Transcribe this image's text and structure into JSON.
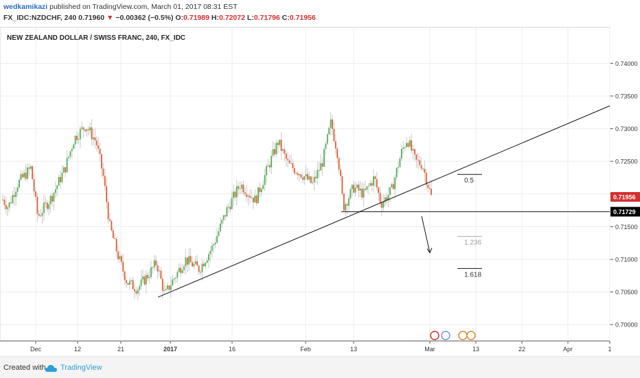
{
  "header": {
    "author": "wedkamikazi",
    "published_text": "published on TradingView.com, March 01, 2017 08:31 EST",
    "symbol": "FX_IDC:NZDCHF, 240",
    "last": "0.71960",
    "change": "−0.00362 (−0.5%)",
    "o_label": "O:",
    "o_value": "0.71989",
    "h_label": "H:",
    "h_value": "0.72072",
    "l_label": "L:",
    "l_value": "0.71796",
    "c_label": "C:",
    "c_value": "0.71956"
  },
  "chart_title": "NEW ZEALAND DOLLAR / SWISS FRANC, 240, FX_IDC",
  "footer": {
    "created": "Created with",
    "brand": "TradingView"
  },
  "colors": {
    "up": "#4caf50",
    "down": "#e05a2b",
    "grid": "#ececec",
    "price_badge": "#d32f2f",
    "level_badge": "#000000",
    "brand": "#2a9fd8"
  },
  "chart_data": {
    "type": "candlestick",
    "title": "NEW ZEALAND DOLLAR / SWISS FRANC, 240, FX_IDC",
    "x_ticks": [
      "Dec",
      "12",
      "21",
      "2017",
      "16",
      "Feb",
      "13",
      "Mar",
      "13",
      "22",
      "Apr",
      "1"
    ],
    "y_ticks": [
      "0.74000",
      "0.73500",
      "0.73000",
      "0.72500",
      "0.72000",
      "0.71500",
      "0.71000",
      "0.70500",
      "0.70000"
    ],
    "ylim": [
      0.6975,
      0.7455
    ],
    "grid": true,
    "last_price_label": "0.71956",
    "support_level_label": "0.71729",
    "support_level": 0.71729,
    "fib_levels": [
      {
        "label": "0.5",
        "value": 0.723
      },
      {
        "label": "1.236",
        "value": 0.7135
      },
      {
        "label": "1.618",
        "value": 0.7086
      }
    ],
    "trendline": {
      "from": {
        "date": "2016-12-30",
        "price": 0.7042
      },
      "to": {
        "date": "2017-04-01",
        "price": 0.7335
      }
    },
    "projection_arrow": {
      "from": {
        "date": "2017-03-01",
        "price": 0.7166
      },
      "to": {
        "date": "2017-03-01",
        "price": 0.711
      }
    },
    "waypoints": [
      {
        "x": 5,
        "p": 0.719
      },
      {
        "x": 12,
        "p": 0.718
      },
      {
        "x": 25,
        "p": 0.7215
      },
      {
        "x": 45,
        "p": 0.724
      },
      {
        "x": 55,
        "p": 0.7165
      },
      {
        "x": 75,
        "p": 0.7195
      },
      {
        "x": 95,
        "p": 0.724
      },
      {
        "x": 108,
        "p": 0.7285
      },
      {
        "x": 125,
        "p": 0.7305
      },
      {
        "x": 140,
        "p": 0.728
      },
      {
        "x": 150,
        "p": 0.723
      },
      {
        "x": 160,
        "p": 0.715
      },
      {
        "x": 172,
        "p": 0.7105
      },
      {
        "x": 185,
        "p": 0.7065
      },
      {
        "x": 200,
        "p": 0.7055
      },
      {
        "x": 215,
        "p": 0.7075
      },
      {
        "x": 228,
        "p": 0.7095
      },
      {
        "x": 240,
        "p": 0.7045
      },
      {
        "x": 250,
        "p": 0.7065
      },
      {
        "x": 270,
        "p": 0.71
      },
      {
        "x": 290,
        "p": 0.7085
      },
      {
        "x": 310,
        "p": 0.712
      },
      {
        "x": 330,
        "p": 0.7175
      },
      {
        "x": 350,
        "p": 0.7215
      },
      {
        "x": 372,
        "p": 0.719
      },
      {
        "x": 390,
        "p": 0.724
      },
      {
        "x": 405,
        "p": 0.728
      },
      {
        "x": 420,
        "p": 0.7245
      },
      {
        "x": 440,
        "p": 0.723
      },
      {
        "x": 455,
        "p": 0.7215
      },
      {
        "x": 470,
        "p": 0.725
      },
      {
        "x": 482,
        "p": 0.731
      },
      {
        "x": 492,
        "p": 0.726
      },
      {
        "x": 500,
        "p": 0.718
      },
      {
        "x": 515,
        "p": 0.721
      },
      {
        "x": 530,
        "p": 0.72
      },
      {
        "x": 545,
        "p": 0.7225
      },
      {
        "x": 555,
        "p": 0.7185
      },
      {
        "x": 570,
        "p": 0.7205
      },
      {
        "x": 585,
        "p": 0.7265
      },
      {
        "x": 593,
        "p": 0.7285
      },
      {
        "x": 605,
        "p": 0.725
      },
      {
        "x": 615,
        "p": 0.7245
      },
      {
        "x": 628,
        "p": 0.7196
      }
    ]
  }
}
